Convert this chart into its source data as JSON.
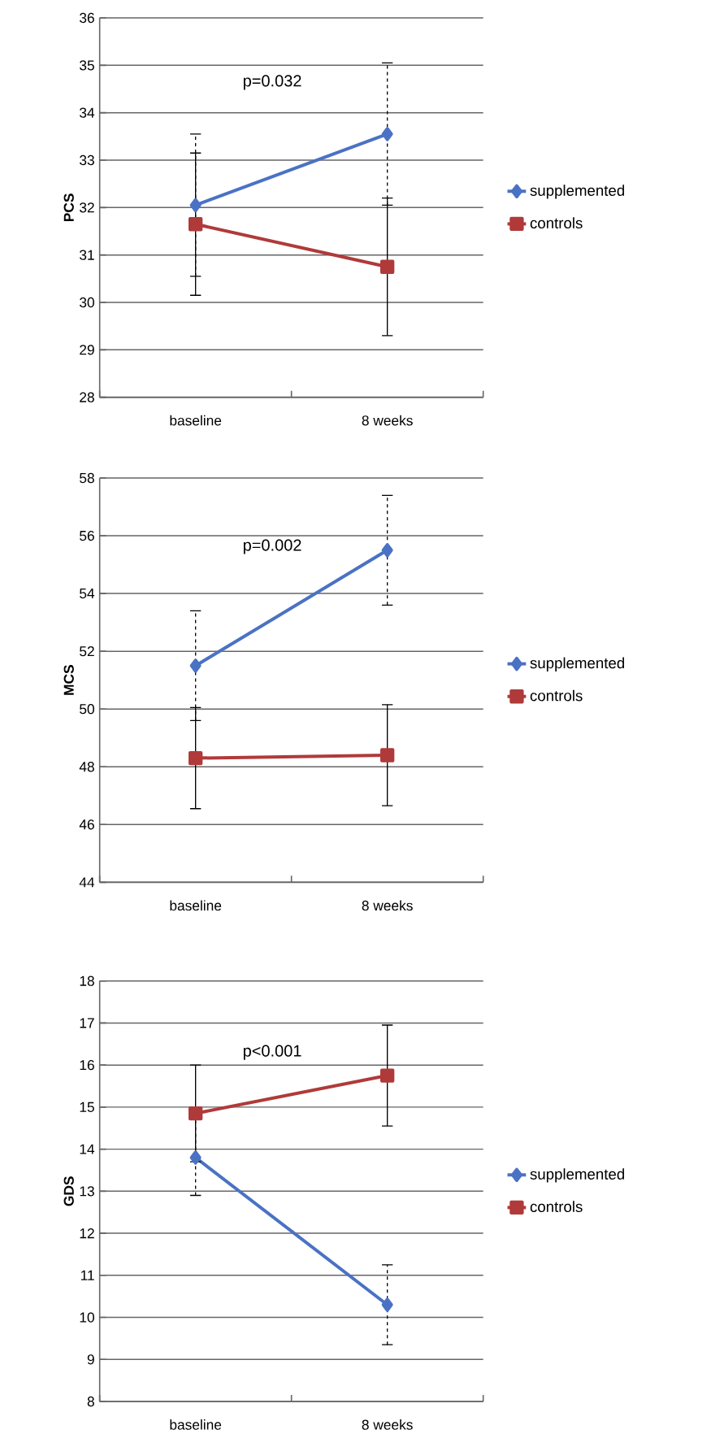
{
  "chart_data": [
    {
      "type": "line",
      "categories": [
        "baseline",
        "8 weeks"
      ],
      "ylabel": "PCS",
      "ylim": [
        28,
        36
      ],
      "yticks": [
        28,
        29,
        30,
        31,
        32,
        33,
        34,
        35,
        36
      ],
      "grid": "y",
      "legend": "right",
      "annotations": [
        "p=0.032"
      ],
      "series": [
        {
          "name": "supplemented",
          "color": "#4a72c4",
          "marker": "diamond",
          "values": [
            32.05,
            33.55
          ],
          "errors": [
            1.5,
            1.5
          ]
        },
        {
          "name": "controls",
          "color": "#b03a3a",
          "marker": "square",
          "values": [
            31.65,
            30.75
          ],
          "errors": [
            1.5,
            1.45
          ]
        }
      ]
    },
    {
      "type": "line",
      "categories": [
        "baseline",
        "8 weeks"
      ],
      "ylabel": "MCS",
      "ylim": [
        44,
        58
      ],
      "yticks": [
        44,
        46,
        48,
        50,
        52,
        54,
        56,
        58
      ],
      "grid": "y",
      "legend": "right",
      "annotations": [
        "p=0.002"
      ],
      "series": [
        {
          "name": "supplemented",
          "color": "#4a72c4",
          "marker": "diamond",
          "values": [
            51.5,
            55.5
          ],
          "errors": [
            1.9,
            1.9
          ]
        },
        {
          "name": "controls",
          "color": "#b03a3a",
          "marker": "square",
          "values": [
            48.3,
            48.4
          ],
          "errors": [
            1.75,
            1.75
          ]
        }
      ]
    },
    {
      "type": "line",
      "categories": [
        "baseline",
        "8 weeks"
      ],
      "ylabel": "GDS",
      "ylim": [
        8,
        18
      ],
      "yticks": [
        8,
        9,
        10,
        11,
        12,
        13,
        14,
        15,
        16,
        17,
        18
      ],
      "grid": "y",
      "legend": "right",
      "annotations": [
        "p<0.001"
      ],
      "series": [
        {
          "name": "supplemented",
          "color": "#4a72c4",
          "marker": "diamond",
          "values": [
            13.8,
            10.3
          ],
          "errors": [
            0.9,
            0.95
          ]
        },
        {
          "name": "controls",
          "color": "#b03a3a",
          "marker": "square",
          "values": [
            14.85,
            15.75
          ],
          "errors": [
            1.15,
            1.2
          ]
        }
      ]
    }
  ]
}
